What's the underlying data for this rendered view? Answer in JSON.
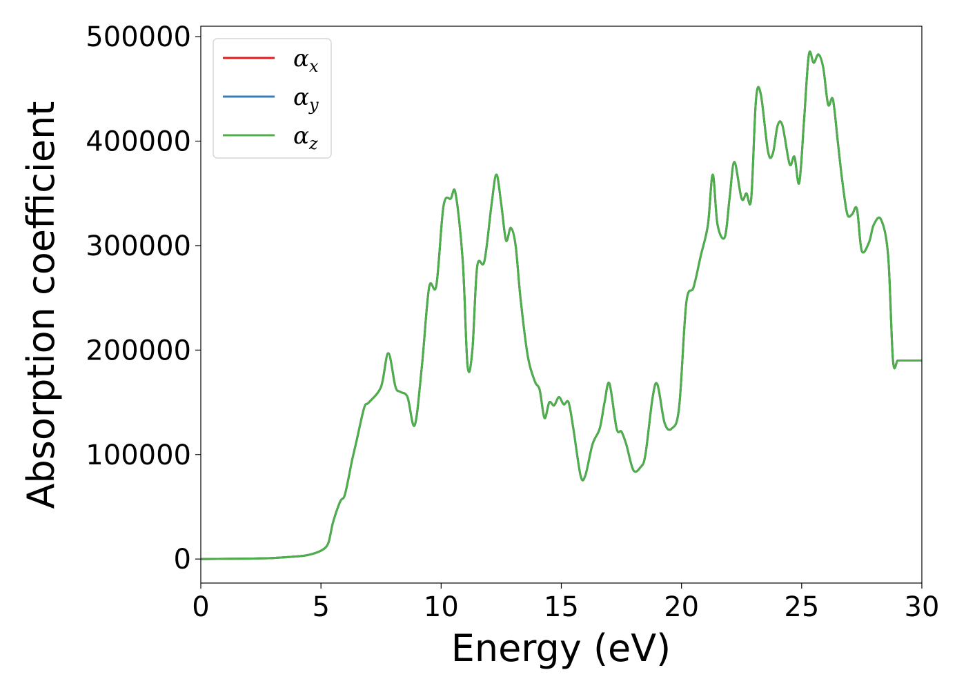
{
  "chart_data": {
    "type": "line",
    "xlabel": "Energy (eV)",
    "ylabel": "Absorption coefficient",
    "xlim": [
      0,
      30
    ],
    "ylim": [
      -23000,
      510000
    ],
    "xticks": [
      "0",
      "5",
      "10",
      "15",
      "20",
      "25",
      "30"
    ],
    "yticks": [
      "0",
      "100000",
      "200000",
      "300000",
      "400000",
      "500000"
    ],
    "grid": false,
    "legend_position": "top-left",
    "series": [
      {
        "name_base": "α",
        "name_sub": "x",
        "color": "#e41a1c",
        "x": [
          0,
          2,
          3,
          4,
          4.5,
          5,
          5.3,
          5.5,
          5.8,
          6,
          6.3,
          6.5,
          6.8,
          7,
          7.5,
          7.8,
          8.1,
          8.3,
          8.6,
          8.9,
          9.2,
          9.5,
          9.8,
          10.1,
          10.4,
          10.6,
          10.9,
          11.1,
          11.3,
          11.5,
          11.8,
          12.1,
          12.3,
          12.5,
          12.7,
          12.9,
          13.1,
          13.3,
          13.6,
          13.9,
          14.1,
          14.3,
          14.5,
          14.7,
          14.9,
          15.1,
          15.3,
          15.5,
          15.8,
          16,
          16.3,
          16.6,
          16.8,
          17,
          17.3,
          17.5,
          17.7,
          18,
          18.3,
          18.5,
          18.8,
          19,
          19.3,
          19.6,
          19.9,
          20.2,
          20.5,
          20.8,
          21.1,
          21.3,
          21.5,
          21.8,
          22,
          22.2,
          22.5,
          22.7,
          22.9,
          23.1,
          23.3,
          23.6,
          23.8,
          24,
          24.2,
          24.5,
          24.7,
          24.9,
          25.1,
          25.3,
          25.5,
          25.7,
          25.9,
          26.1,
          26.3,
          26.5,
          26.7,
          26.9,
          27.1,
          27.3,
          27.5,
          27.8,
          28,
          28.3,
          28.6,
          28.8,
          29,
          29.3,
          29.5,
          29.7,
          30
        ],
        "y": [
          0,
          400,
          1000,
          2500,
          4000,
          8000,
          15000,
          35000,
          55000,
          62000,
          95000,
          115000,
          145000,
          150000,
          165000,
          197000,
          165000,
          160000,
          155000,
          128000,
          185000,
          260000,
          262000,
          338000,
          345000,
          350000,
          285000,
          185000,
          200000,
          280000,
          285000,
          340000,
          368000,
          340000,
          305000,
          317000,
          300000,
          250000,
          195000,
          170000,
          162000,
          135000,
          150000,
          147000,
          155000,
          148000,
          150000,
          125000,
          80000,
          80000,
          110000,
          125000,
          150000,
          168000,
          125000,
          122000,
          110000,
          85000,
          88000,
          100000,
          155000,
          167000,
          130000,
          125000,
          145000,
          245000,
          260000,
          290000,
          320000,
          368000,
          320000,
          308000,
          345000,
          380000,
          345000,
          350000,
          345000,
          440000,
          445000,
          390000,
          388000,
          415000,
          415000,
          378000,
          385000,
          360000,
          420000,
          483000,
          475000,
          483000,
          470000,
          435000,
          440000,
          400000,
          360000,
          330000,
          330000,
          335000,
          295000,
          303000,
          320000,
          325000,
          290000,
          190000,
          190000,
          190000,
          190000,
          190000,
          190000
        ],
        "use_profile": "shared"
      },
      {
        "name_base": "α",
        "name_sub": "y",
        "color": "#377eb8",
        "use_profile": "shared"
      },
      {
        "name_base": "α",
        "name_sub": "z",
        "color": "#4daf4a",
        "use_profile": "shared"
      }
    ]
  }
}
